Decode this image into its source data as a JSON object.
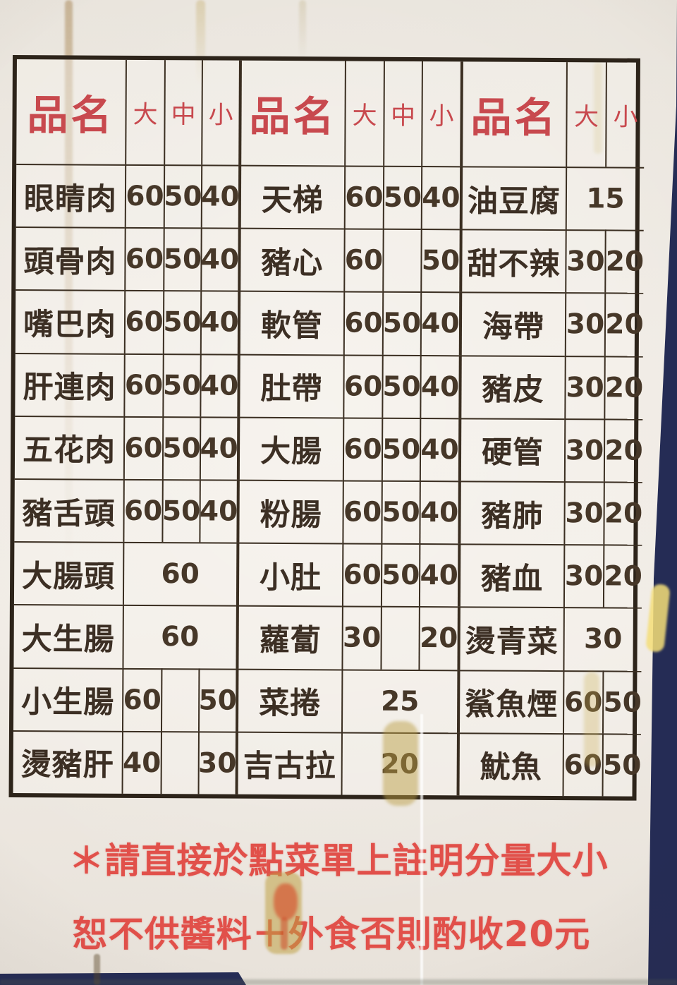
{
  "colors": {
    "paper": "#efeae3",
    "background_navy": "#252c55",
    "grid_line": "#3a2e21",
    "header_red": "#c8494e",
    "note_red": "#e1504a",
    "ink": "#3c2f24"
  },
  "tables": [
    {
      "name": "left-menu-column",
      "headers": [
        "品名",
        "大",
        "中",
        "小"
      ],
      "rows": [
        {
          "item": "眼睛肉",
          "prices": [
            "60",
            "50",
            "40"
          ]
        },
        {
          "item": "頭骨肉",
          "prices": [
            "60",
            "50",
            "40"
          ]
        },
        {
          "item": "嘴巴肉",
          "prices": [
            "60",
            "50",
            "40"
          ]
        },
        {
          "item": "肝連肉",
          "prices": [
            "60",
            "50",
            "40"
          ]
        },
        {
          "item": "五花肉",
          "prices": [
            "60",
            "50",
            "40"
          ]
        },
        {
          "item": "豬舌頭",
          "prices": [
            "60",
            "50",
            "40"
          ]
        },
        {
          "item": "大腸頭",
          "span": "60"
        },
        {
          "item": "大生腸",
          "span": "60"
        },
        {
          "item": "小生腸",
          "prices": [
            "60",
            "",
            "50"
          ]
        },
        {
          "item": "燙豬肝",
          "prices": [
            "40",
            "",
            "30"
          ]
        }
      ]
    },
    {
      "name": "middle-menu-column",
      "headers": [
        "品名",
        "大",
        "中",
        "小"
      ],
      "rows": [
        {
          "item": "天梯",
          "prices": [
            "60",
            "50",
            "40"
          ]
        },
        {
          "item": "豬心",
          "prices": [
            "60",
            "",
            "50"
          ]
        },
        {
          "item": "軟管",
          "prices": [
            "60",
            "50",
            "40"
          ]
        },
        {
          "item": "肚帶",
          "prices": [
            "60",
            "50",
            "40"
          ]
        },
        {
          "item": "大腸",
          "prices": [
            "60",
            "50",
            "40"
          ]
        },
        {
          "item": "粉腸",
          "prices": [
            "60",
            "50",
            "40"
          ]
        },
        {
          "item": "小肚",
          "prices": [
            "60",
            "50",
            "40"
          ]
        },
        {
          "item": "蘿蔔",
          "prices": [
            "30",
            "",
            "20"
          ]
        },
        {
          "item": "菜捲",
          "span": "25"
        },
        {
          "item": "吉古拉",
          "span": "20"
        }
      ]
    },
    {
      "name": "right-menu-column",
      "headers": [
        "品名",
        "大",
        "小"
      ],
      "rows": [
        {
          "item": "油豆腐",
          "span": "15"
        },
        {
          "item": "甜不辣",
          "prices": [
            "30",
            "20"
          ]
        },
        {
          "item": "海帶",
          "prices": [
            "30",
            "20"
          ]
        },
        {
          "item": "豬皮",
          "prices": [
            "30",
            "20"
          ]
        },
        {
          "item": "硬管",
          "prices": [
            "30",
            "20"
          ]
        },
        {
          "item": "豬肺",
          "prices": [
            "30",
            "20"
          ]
        },
        {
          "item": "豬血",
          "prices": [
            "30",
            "20"
          ]
        },
        {
          "item": "燙青菜",
          "span": "30"
        },
        {
          "item": "鯊魚煙",
          "prices": [
            "60",
            "50"
          ]
        },
        {
          "item": "魷魚",
          "prices": [
            "60",
            "50"
          ]
        }
      ]
    }
  ],
  "notes": {
    "line1": "＊請直接於點菜單上註明分量大小",
    "line2": "恕不供醬料＋外食否則酌收20元"
  }
}
